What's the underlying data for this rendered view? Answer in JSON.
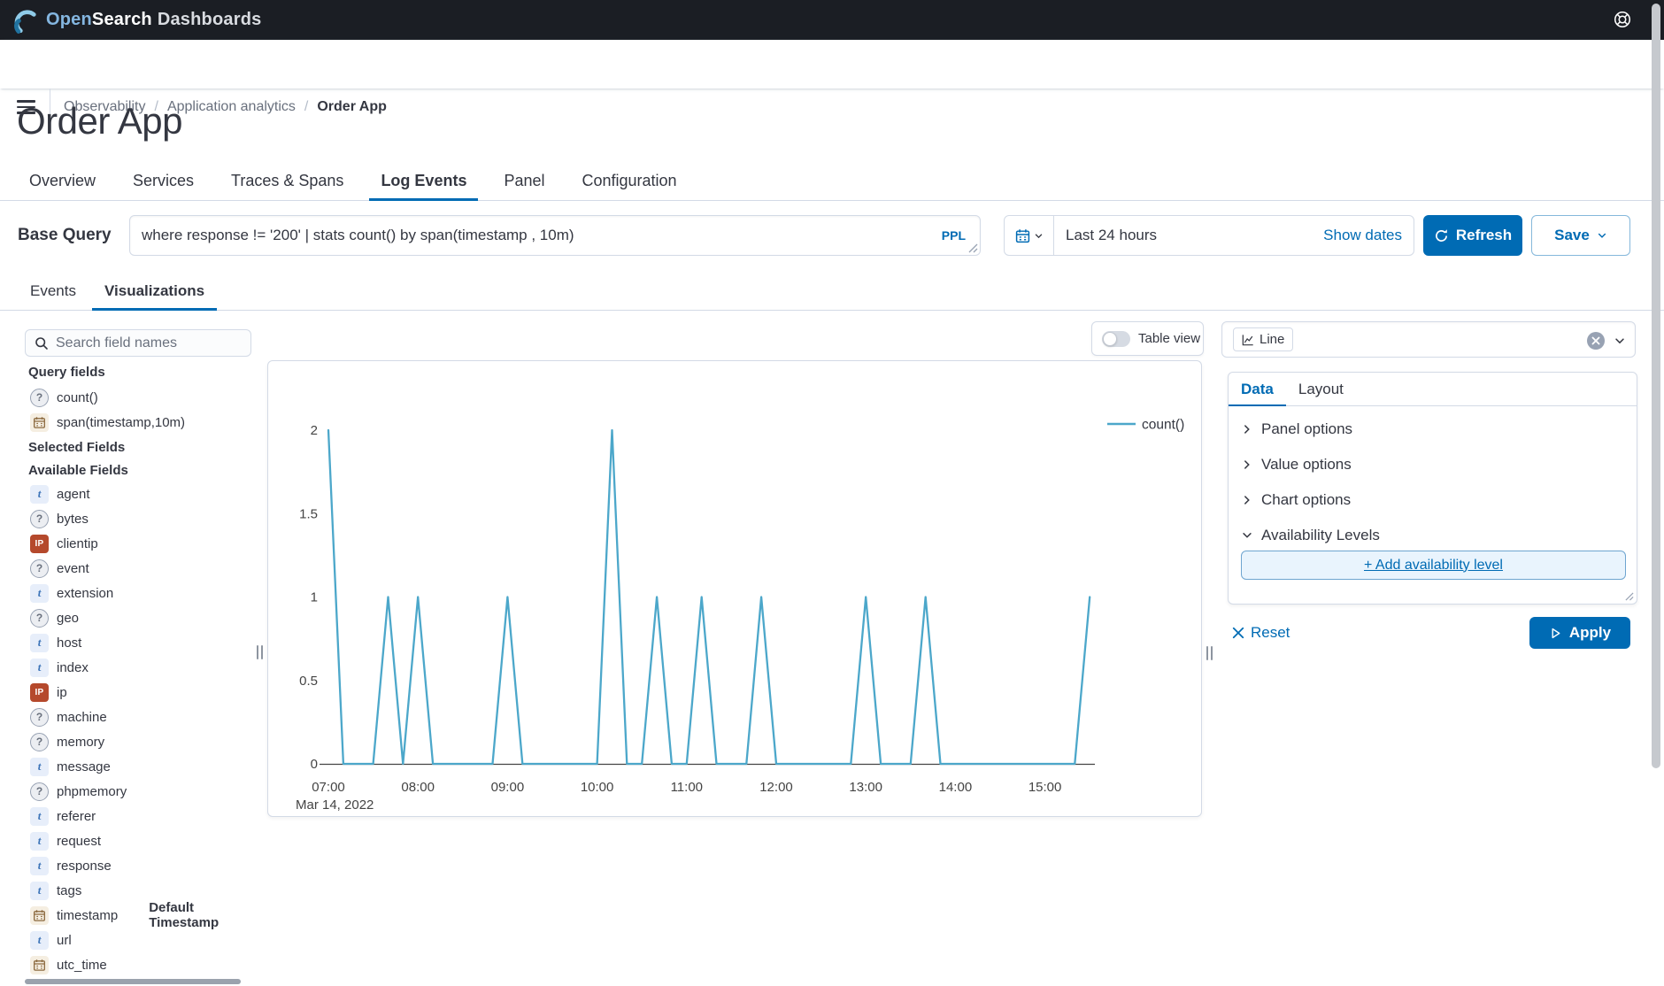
{
  "header": {
    "brand_open": "Open",
    "brand_search": "Search",
    "brand_dashboards": "Dashboards"
  },
  "breadcrumb": {
    "items": [
      "Observability",
      "Application analytics",
      "Order App"
    ],
    "separator": "/"
  },
  "page": {
    "title": "Order App"
  },
  "tabs": {
    "items": [
      "Overview",
      "Services",
      "Traces & Spans",
      "Log Events",
      "Panel",
      "Configuration"
    ],
    "active": "Log Events"
  },
  "query": {
    "label": "Base Query",
    "value": "where response != '200' | stats count() by span(timestamp , 10m)",
    "lang": "PPL"
  },
  "timepicker": {
    "value": "Last 24 hours",
    "show_dates": "Show dates",
    "refresh_label": "Refresh",
    "save_label": "Save"
  },
  "subtabs": {
    "items": [
      "Events",
      "Visualizations"
    ],
    "active": "Visualizations"
  },
  "sidebar": {
    "search_placeholder": "Search field names",
    "headers": {
      "query_fields": "Query fields",
      "selected_fields": "Selected Fields",
      "available_fields": "Available Fields"
    },
    "query_fields": [
      {
        "name": "count()",
        "type": "unknown"
      },
      {
        "name": "span(timestamp,10m)",
        "type": "date"
      }
    ],
    "available_fields": [
      {
        "name": "agent",
        "type": "string"
      },
      {
        "name": "bytes",
        "type": "unknown"
      },
      {
        "name": "clientip",
        "type": "ip"
      },
      {
        "name": "event",
        "type": "unknown"
      },
      {
        "name": "extension",
        "type": "string"
      },
      {
        "name": "geo",
        "type": "unknown"
      },
      {
        "name": "host",
        "type": "string"
      },
      {
        "name": "index",
        "type": "string"
      },
      {
        "name": "ip",
        "type": "ip"
      },
      {
        "name": "machine",
        "type": "unknown"
      },
      {
        "name": "memory",
        "type": "unknown"
      },
      {
        "name": "message",
        "type": "string"
      },
      {
        "name": "phpmemory",
        "type": "unknown"
      },
      {
        "name": "referer",
        "type": "string"
      },
      {
        "name": "request",
        "type": "string"
      },
      {
        "name": "response",
        "type": "string"
      },
      {
        "name": "tags",
        "type": "string"
      },
      {
        "name": "timestamp",
        "type": "date",
        "badge": "Default Timestamp"
      },
      {
        "name": "url",
        "type": "string"
      },
      {
        "name": "utc_time",
        "type": "date"
      }
    ]
  },
  "toolbar": {
    "table_view": "Table view"
  },
  "viz_selector": {
    "value": "Line"
  },
  "config": {
    "tabs": [
      "Data",
      "Layout"
    ],
    "active_tab": "Data",
    "accordions": [
      {
        "label": "Panel options",
        "expanded": false
      },
      {
        "label": "Value options",
        "expanded": false
      },
      {
        "label": "Chart options",
        "expanded": false
      },
      {
        "label": "Availability Levels",
        "expanded": true
      }
    ],
    "add_level_label": "+ Add availability level",
    "reset_label": "Reset",
    "apply_label": "Apply"
  },
  "colors": {
    "accent": "#006bb4",
    "line": "#4ca7ca",
    "axis_text": "#444444"
  },
  "chart_data": {
    "type": "line",
    "x": [
      "07:00",
      "07:10",
      "07:20",
      "07:30",
      "07:40",
      "07:50",
      "08:00",
      "08:10",
      "08:20",
      "08:30",
      "08:40",
      "08:50",
      "09:00",
      "09:10",
      "09:20",
      "09:30",
      "09:40",
      "09:50",
      "10:00",
      "10:10",
      "10:20",
      "10:30",
      "10:40",
      "10:50",
      "11:00",
      "11:10",
      "11:20",
      "11:30",
      "11:40",
      "11:50",
      "12:00",
      "12:10",
      "12:20",
      "12:30",
      "12:40",
      "12:50",
      "13:00",
      "13:10",
      "13:20",
      "13:30",
      "13:40",
      "13:50",
      "14:00",
      "14:10",
      "14:20",
      "14:30",
      "14:40",
      "14:50",
      "15:00",
      "15:10",
      "15:20",
      "15:30"
    ],
    "series": [
      {
        "name": "count()",
        "color": "#4ca7ca",
        "values": [
          2,
          0,
          0,
          0,
          1,
          0,
          1,
          0,
          0,
          0,
          0,
          0,
          1,
          0,
          0,
          0,
          0,
          0,
          0,
          2,
          0,
          0,
          1,
          0,
          0,
          1,
          0,
          0,
          0,
          1,
          0,
          0,
          0,
          0,
          0,
          0,
          1,
          0,
          0,
          0,
          1,
          0,
          0,
          0,
          0,
          0,
          0,
          0,
          0,
          0,
          0,
          1
        ]
      }
    ],
    "x_tick_labels": [
      "07:00",
      "08:00",
      "09:00",
      "10:00",
      "11:00",
      "12:00",
      "13:00",
      "14:00",
      "15:00"
    ],
    "x_axis_date": "Mar 14, 2022",
    "y_ticks": [
      0,
      0.5,
      1,
      1.5,
      2
    ],
    "ylim": [
      0,
      2
    ],
    "grid": false,
    "legend_position": "top-right"
  }
}
